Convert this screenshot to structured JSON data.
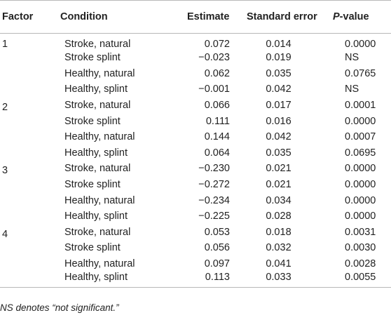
{
  "table": {
    "headers": {
      "factor": "Factor",
      "condition": "Condition",
      "estimate": "Estimate",
      "standard_error": "Standard error",
      "p_prefix": "P",
      "p_suffix": "-value"
    },
    "groups": [
      {
        "factor": "1",
        "rows": [
          {
            "condition": "Stroke, natural",
            "estimate": "0.072",
            "se": "0.014",
            "p": "0.0000"
          },
          {
            "condition": "Stroke splint",
            "estimate": "−0.023",
            "se": "0.019",
            "p": "NS"
          },
          {
            "condition": "Healthy, natural",
            "estimate": "0.062",
            "se": "0.035",
            "p": "0.0765"
          },
          {
            "condition": "Healthy, splint",
            "estimate": "−0.001",
            "se": "0.042",
            "p": "NS"
          }
        ]
      },
      {
        "factor": "2",
        "rows": [
          {
            "condition": "Stroke, natural",
            "estimate": "0.066",
            "se": "0.017",
            "p": "0.0001"
          },
          {
            "condition": "Stroke splint",
            "estimate": "0.111",
            "se": "0.016",
            "p": "0.0000"
          },
          {
            "condition": "Healthy, natural",
            "estimate": "0.144",
            "se": "0.042",
            "p": "0.0007"
          },
          {
            "condition": "Healthy, splint",
            "estimate": "0.064",
            "se": "0.035",
            "p": "0.0695"
          }
        ]
      },
      {
        "factor": "3",
        "rows": [
          {
            "condition": "Stroke, natural",
            "estimate": "−0.230",
            "se": "0.021",
            "p": "0.0000"
          },
          {
            "condition": "Stroke splint",
            "estimate": "−0.272",
            "se": "0.021",
            "p": "0.0000"
          },
          {
            "condition": "Healthy, natural",
            "estimate": "−0.234",
            "se": "0.034",
            "p": "0.0000"
          },
          {
            "condition": "Healthy, splint",
            "estimate": "−0.225",
            "se": "0.028",
            "p": "0.0000"
          }
        ]
      },
      {
        "factor": "4",
        "rows": [
          {
            "condition": "Stroke, natural",
            "estimate": "0.053",
            "se": "0.018",
            "p": "0.0031"
          },
          {
            "condition": "Stroke splint",
            "estimate": "0.056",
            "se": "0.032",
            "p": "0.0030"
          },
          {
            "condition": "Healthy, natural",
            "estimate": "0.097",
            "se": "0.041",
            "p": "0.0028"
          },
          {
            "condition": "Healthy, splint",
            "estimate": "0.113",
            "se": "0.033",
            "p": "0.0055"
          }
        ]
      }
    ]
  },
  "footnote": "NS denotes “not significant.”",
  "colors": {
    "text": "#222222",
    "rule": "#b8b8b8",
    "background": "#ffffff"
  }
}
